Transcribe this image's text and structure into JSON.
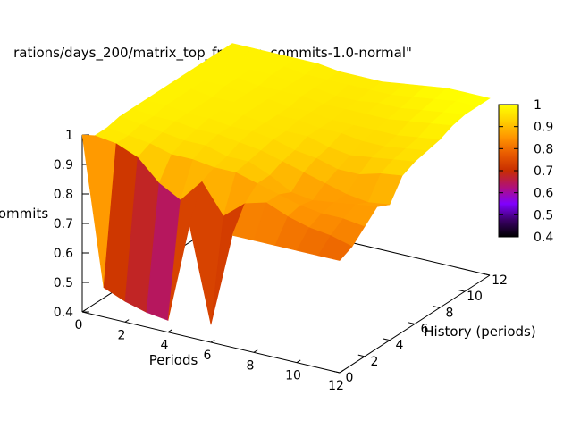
{
  "chart_data": {
    "type": "surface3d",
    "title": "rations/days_200/matrix_top_fraction_commits-1.0-normal\"",
    "xlabel": "Periods",
    "ylabel": "History (periods)",
    "zlabel": "ommits",
    "xlim": [
      0,
      12
    ],
    "ylim": [
      0,
      12
    ],
    "zlim": [
      0.4,
      1
    ],
    "x_ticks": [
      "0",
      "2",
      "4",
      "6",
      "8",
      "10",
      "12"
    ],
    "y_ticks": [
      "0",
      "2",
      "4",
      "6",
      "8",
      "10",
      "12"
    ],
    "z_ticks": [
      "0.4",
      "0.5",
      "0.6",
      "0.7",
      "0.8",
      "0.9",
      "1"
    ],
    "colorbar_ticks": [
      "0.4",
      "0.5",
      "0.6",
      "0.7",
      "0.8",
      "0.9",
      "1"
    ],
    "colorbar_range": [
      0.4,
      1
    ],
    "palette": [
      "#000000",
      "#3a0066",
      "#8000ff",
      "#b0107a",
      "#c82e00",
      "#e85a00",
      "#ff9400",
      "#ffd000",
      "#ffff00"
    ],
    "x": [
      0,
      1,
      2,
      3,
      4,
      5,
      6,
      7,
      8,
      9,
      10,
      11,
      12
    ],
    "y": [
      0,
      1,
      2,
      3,
      4,
      5,
      6,
      7,
      8,
      9,
      10,
      11,
      12
    ],
    "z": [
      [
        1.0,
        0.5,
        0.47,
        0.45,
        0.44,
        0.78,
        0.46,
        0.78,
        0.78,
        0.78,
        0.78,
        0.78,
        0.78
      ],
      [
        0.97,
        0.96,
        0.93,
        0.86,
        0.82,
        0.9,
        0.8,
        0.86,
        0.88,
        0.85,
        0.83,
        0.82,
        0.8
      ],
      [
        0.97,
        0.96,
        0.95,
        0.93,
        0.93,
        0.92,
        0.92,
        0.9,
        0.88,
        0.86,
        0.85,
        0.85,
        0.84
      ],
      [
        0.98,
        0.97,
        0.96,
        0.95,
        0.95,
        0.93,
        0.93,
        0.9,
        0.86,
        0.85,
        0.86,
        0.87,
        0.88
      ],
      [
        0.98,
        0.97,
        0.97,
        0.96,
        0.96,
        0.95,
        0.94,
        0.92,
        0.9,
        0.88,
        0.86,
        0.85,
        0.86
      ],
      [
        0.98,
        0.98,
        0.97,
        0.97,
        0.96,
        0.96,
        0.95,
        0.93,
        0.92,
        0.9,
        0.9,
        0.92,
        0.93
      ],
      [
        0.98,
        0.98,
        0.97,
        0.97,
        0.97,
        0.96,
        0.95,
        0.95,
        0.93,
        0.92,
        0.93,
        0.94,
        0.95
      ],
      [
        0.98,
        0.98,
        0.97,
        0.97,
        0.97,
        0.96,
        0.96,
        0.95,
        0.95,
        0.94,
        0.94,
        0.95,
        0.96
      ],
      [
        0.98,
        0.98,
        0.98,
        0.97,
        0.97,
        0.96,
        0.96,
        0.95,
        0.95,
        0.95,
        0.95,
        0.96,
        0.97
      ],
      [
        0.98,
        0.98,
        0.98,
        0.97,
        0.97,
        0.97,
        0.96,
        0.96,
        0.96,
        0.96,
        0.97,
        0.98,
        0.99
      ],
      [
        0.98,
        0.98,
        0.98,
        0.98,
        0.97,
        0.97,
        0.96,
        0.96,
        0.97,
        0.97,
        0.98,
        0.99,
        1.0
      ],
      [
        0.98,
        0.98,
        0.98,
        0.98,
        0.97,
        0.97,
        0.97,
        0.97,
        0.97,
        0.98,
        0.99,
        1.0,
        1.0
      ],
      [
        0.98,
        0.98,
        0.98,
        0.98,
        0.98,
        0.97,
        0.97,
        0.97,
        0.98,
        0.99,
        1.0,
        1.0,
        1.0
      ]
    ]
  }
}
